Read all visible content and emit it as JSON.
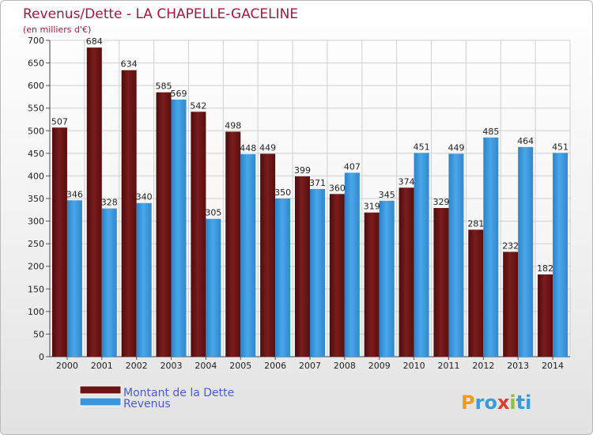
{
  "chart_data": {
    "type": "bar",
    "title": "Revenus/Dette - LA CHAPELLE-GACELINE",
    "subtitle": "(en milliers d'€)",
    "categories": [
      "2000",
      "2001",
      "2002",
      "2003",
      "2004",
      "2005",
      "2006",
      "2007",
      "2008",
      "2009",
      "2010",
      "2011",
      "2012",
      "2013",
      "2014"
    ],
    "series": [
      {
        "name": "Montant de la Dette",
        "color": "#7a1a1a",
        "values": [
          507,
          684,
          634,
          585,
          542,
          498,
          449,
          399,
          360,
          319,
          374,
          329,
          281,
          232,
          182
        ]
      },
      {
        "name": "Revenus",
        "color": "#3b97dd",
        "values": [
          346,
          328,
          340,
          569,
          305,
          448,
          350,
          371,
          407,
          345,
          451,
          449,
          485,
          464,
          451
        ]
      }
    ],
    "ylim": [
      0,
      700
    ],
    "yticks": [
      0,
      50,
      100,
      150,
      200,
      250,
      300,
      350,
      400,
      450,
      500,
      550,
      600,
      650,
      700
    ],
    "grid": true,
    "legend": "bottom-left"
  },
  "logo": {
    "letters": [
      "P",
      "r",
      "o",
      "x",
      "i",
      "t",
      "i"
    ],
    "colors": [
      "#f29a1f",
      "#3b9bd8",
      "#3b9bd8",
      "#e23b2e",
      "#8cbf3f",
      "#3b9bd8",
      "#3b9bd8"
    ]
  }
}
